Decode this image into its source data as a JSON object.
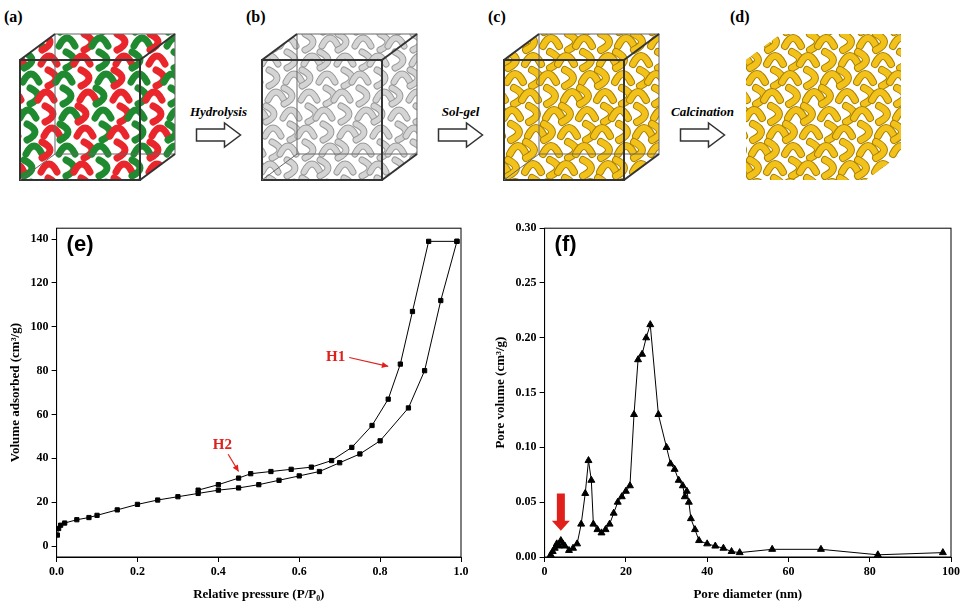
{
  "diagram": {
    "panels": [
      {
        "label": "(a)"
      },
      {
        "label": "(b)"
      },
      {
        "label": "(c)"
      },
      {
        "label": "(d)"
      }
    ],
    "steps": [
      "Hydrolysis",
      "Sol-gel",
      "Calcination"
    ]
  },
  "chart_data": [
    {
      "panel_label": "(e)",
      "type": "line",
      "x_label": "Relative pressure (P/P₀)",
      "y_label": "Volume adsorbed (cm³/g)",
      "xlim": [
        0,
        1
      ],
      "xticks": [
        {
          "value": 0,
          "label": "0.0"
        },
        0.2,
        0.4,
        0.6,
        0.8,
        {
          "value": 1,
          "label": "1.0"
        }
      ],
      "ylim": [
        -5,
        145
      ],
      "yticks": [
        0,
        20,
        40,
        60,
        80,
        100,
        120,
        140
      ],
      "grid": false,
      "series": [
        {
          "color": "#000000",
          "marker": "square",
          "x": [
            0.002,
            0.005,
            0.01,
            0.02,
            0.05,
            0.08,
            0.1,
            0.15,
            0.2,
            0.25,
            0.3,
            0.35,
            0.4,
            0.45,
            0.5,
            0.55,
            0.6,
            0.65,
            0.7,
            0.75,
            0.8,
            0.87,
            0.91,
            0.95,
            0.99
          ],
          "values": [
            5,
            8,
            9.5,
            10.5,
            12,
            13,
            14,
            16.5,
            19,
            21,
            22.5,
            24,
            25.5,
            26.5,
            28,
            30,
            32,
            34,
            38,
            42,
            48,
            63,
            80,
            112,
            139
          ]
        },
        {
          "color": "#000000",
          "marker": "square",
          "x": [
            0.99,
            0.92,
            0.88,
            0.85,
            0.82,
            0.78,
            0.73,
            0.68,
            0.63,
            0.58,
            0.53,
            0.48,
            0.45,
            0.4,
            0.35
          ],
          "values": [
            139,
            139,
            107,
            83,
            67,
            55,
            45,
            39,
            36,
            35,
            34,
            33,
            31,
            28,
            25.5
          ]
        }
      ],
      "annotations": [
        {
          "text": "H1",
          "color": "#e0201b",
          "x": 0.69,
          "y": 86,
          "target_x": 0.82,
          "target_y": 82
        },
        {
          "text": "H2",
          "color": "#e0201b",
          "x": 0.41,
          "y": 46,
          "target_x": 0.45,
          "target_y": 34
        }
      ]
    },
    {
      "panel_label": "(f)",
      "type": "line",
      "x_label": "Pore diameter (nm)",
      "y_label": "Pore volume (cm³/g)",
      "xlim": [
        0,
        100
      ],
      "xticks": [
        0,
        20,
        40,
        60,
        80,
        100
      ],
      "ylim": [
        0,
        0.3
      ],
      "yticks": [
        {
          "value": 0,
          "label": "0.00"
        },
        0.05,
        {
          "value": 0.1,
          "label": "0.10"
        },
        0.15,
        {
          "value": 0.2,
          "label": "0.20"
        },
        0.25,
        {
          "value": 0.3,
          "label": "0.30"
        }
      ],
      "grid": false,
      "series": [
        {
          "color": "#000000",
          "marker": "triangle",
          "x": [
            1.5,
            2,
            2.5,
            3,
            3.5,
            4,
            4.5,
            5,
            6,
            7,
            8,
            9,
            10,
            10.8,
            11.5,
            12,
            13,
            14,
            15,
            16,
            17,
            18,
            19,
            20,
            21,
            22,
            23,
            24,
            25,
            26,
            28,
            30,
            31,
            32,
            33,
            34,
            34.5,
            35,
            35.5,
            36,
            37,
            38,
            40,
            42,
            44,
            46,
            48,
            56,
            68,
            82,
            98
          ],
          "values": [
            0.002,
            0.005,
            0.008,
            0.012,
            0.01,
            0.015,
            0.012,
            0.01,
            0.006,
            0.008,
            0.012,
            0.03,
            0.058,
            0.088,
            0.07,
            0.03,
            0.025,
            0.022,
            0.025,
            0.03,
            0.04,
            0.05,
            0.055,
            0.06,
            0.065,
            0.13,
            0.18,
            0.185,
            0.2,
            0.212,
            0.13,
            0.1,
            0.085,
            0.08,
            0.07,
            0.065,
            0.055,
            0.06,
            0.05,
            0.035,
            0.025,
            0.015,
            0.012,
            0.01,
            0.008,
            0.005,
            0.004,
            0.007,
            0.007,
            0.002,
            0.004
          ]
        }
      ],
      "arrows": [
        {
          "color": "#e0201b",
          "x": 4,
          "y_from": 0.058,
          "y_to": 0.024
        }
      ]
    }
  ]
}
